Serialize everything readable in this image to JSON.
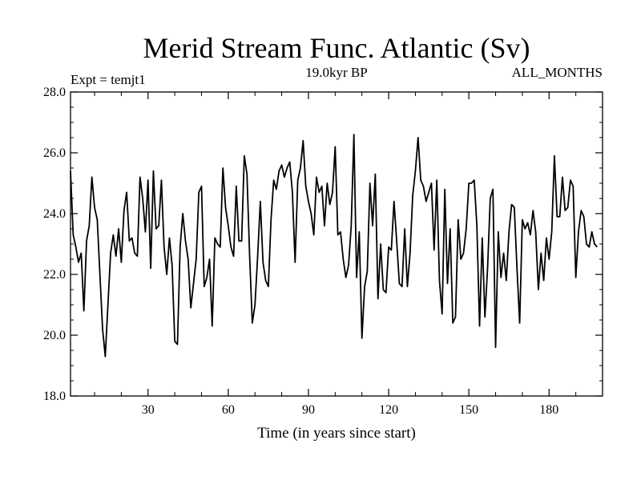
{
  "chart_data": {
    "type": "line",
    "title": "Merid Stream Func. Atlantic (Sv)",
    "left_annotation": "Expt = temjt1",
    "center_annotation": "19.0kyr BP",
    "right_annotation": "ALL_MONTHS",
    "xlabel": "Time (in years since start)",
    "ylabel": "",
    "xlim": [
      1,
      200
    ],
    "ylim": [
      18.0,
      28.0
    ],
    "xticks": [
      30,
      60,
      90,
      120,
      150,
      180
    ],
    "yticks": [
      "18.0",
      "20.0",
      "22.0",
      "24.0",
      "26.0",
      "28.0"
    ],
    "series": [
      {
        "name": "Merid Stream Func. Atlantic",
        "x_start": 1,
        "x_step": 1,
        "values": [
          25.4,
          23.3,
          22.9,
          22.4,
          22.7,
          20.8,
          23.1,
          23.6,
          25.2,
          24.2,
          23.8,
          22.0,
          20.2,
          19.3,
          21.0,
          22.7,
          23.3,
          22.6,
          23.5,
          22.4,
          24.1,
          24.7,
          23.1,
          23.2,
          22.7,
          22.6,
          25.2,
          24.5,
          23.4,
          25.1,
          22.2,
          25.4,
          23.5,
          23.6,
          25.1,
          22.9,
          22.0,
          23.2,
          22.3,
          19.8,
          19.7,
          22.9,
          24.0,
          23.1,
          22.5,
          20.9,
          21.7,
          22.5,
          24.7,
          24.9,
          21.6,
          21.9,
          22.5,
          20.3,
          23.2,
          23.0,
          22.9,
          25.5,
          24.2,
          23.6,
          22.9,
          22.6,
          24.9,
          23.1,
          23.1,
          25.9,
          25.3,
          22.6,
          20.4,
          21.0,
          22.6,
          24.4,
          22.4,
          21.8,
          21.6,
          23.8,
          25.1,
          24.8,
          25.4,
          25.6,
          25.2,
          25.5,
          25.7,
          24.7,
          22.4,
          25.1,
          25.5,
          26.4,
          24.9,
          24.4,
          24.0,
          23.3,
          25.2,
          24.7,
          24.9,
          23.6,
          25.0,
          24.3,
          24.7,
          26.2,
          23.3,
          23.4,
          22.5,
          21.9,
          22.3,
          23.6,
          26.6,
          21.9,
          23.4,
          19.9,
          21.6,
          22.1,
          25.0,
          23.6,
          25.3,
          21.2,
          23.0,
          21.5,
          21.4,
          22.9,
          22.8,
          24.4,
          23.1,
          21.7,
          21.6,
          23.5,
          21.6,
          22.7,
          24.6,
          25.4,
          26.5,
          25.1,
          24.9,
          24.4,
          24.7,
          25.0,
          22.8,
          25.1,
          21.8,
          20.7,
          24.8,
          21.7,
          23.5,
          20.4,
          20.6,
          23.8,
          22.5,
          22.7,
          23.5,
          25.0,
          25.0,
          25.1,
          23.6,
          20.3,
          23.2,
          20.6,
          22.2,
          24.5,
          24.8,
          19.6,
          23.4,
          21.9,
          22.7,
          21.8,
          23.4,
          24.3,
          24.2,
          22.2,
          20.4,
          23.8,
          23.5,
          23.7,
          23.3,
          24.1,
          23.4,
          21.5,
          22.7,
          21.8,
          23.2,
          22.5,
          23.4,
          25.9,
          23.9,
          23.9,
          25.2,
          24.1,
          24.2,
          25.1,
          24.9,
          21.9,
          23.4,
          24.1,
          23.9,
          23.0,
          22.9,
          23.4,
          23.0,
          22.9
        ]
      }
    ]
  },
  "style": {
    "line_color": "#000000",
    "frame_color": "#000000",
    "background": "#ffffff"
  }
}
